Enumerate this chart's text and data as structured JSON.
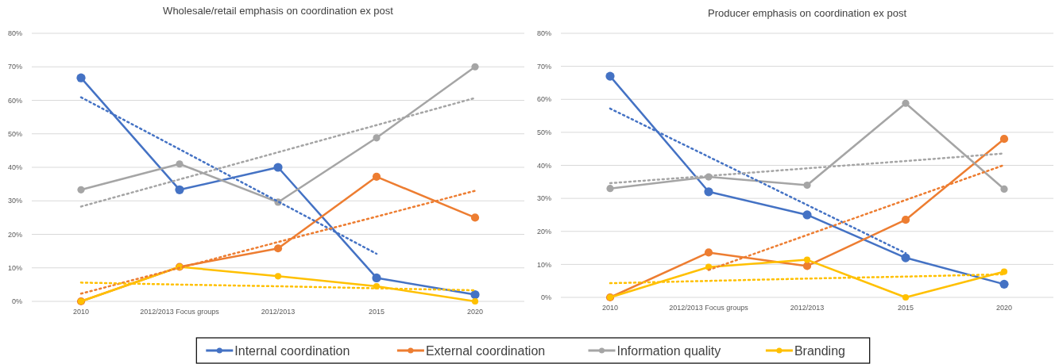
{
  "chart_data": [
    {
      "type": "line",
      "title": "Wholesale/retail emphasis on coordination ex post",
      "categories": [
        "2010",
        "2012/2013 Focus groups",
        "2012/2013",
        "2015",
        "2020"
      ],
      "ylim": [
        0,
        80
      ],
      "yticks": [
        {
          "value": 0,
          "label": "0%"
        },
        {
          "value": 10,
          "label": "10%"
        },
        {
          "value": 20,
          "label": "20%"
        },
        {
          "value": 30,
          "label": "30%"
        },
        {
          "value": 40,
          "label": "40%"
        },
        {
          "value": 50,
          "label": "50%"
        },
        {
          "value": 60,
          "label": "60%"
        },
        {
          "value": 70,
          "label": "70%"
        },
        {
          "value": 80,
          "label": "80%"
        }
      ],
      "grid": "y",
      "legend": "bottom",
      "marker": "circle",
      "line_style": "solid",
      "series": [
        {
          "name": "Internal coordination",
          "color": "#4472c4",
          "values": [
            66.7,
            33.3,
            40,
            7,
            2
          ]
        },
        {
          "name": "External coordination",
          "color": "#ed7d31",
          "values": [
            0,
            10.3,
            15.8,
            37.2,
            25
          ]
        },
        {
          "name": "Information quality",
          "color": "#a5a5a5",
          "values": [
            33.3,
            41,
            29.6,
            48.8,
            70
          ]
        },
        {
          "name": "Branding",
          "color": "#ffc000",
          "values": [
            0,
            10.3,
            7.5,
            4.5,
            0
          ]
        },
        {
          "type": "line",
          "color": "#4472c4",
          "line_style": "dotted",
          "marker": "none",
          "values": [
            60.9,
            45.4,
            29.8,
            14.2,
            null
          ]
        },
        {
          "type": "line",
          "color": "#ed7d31",
          "line_style": "dotted",
          "marker": "none",
          "values": [
            2.3,
            10,
            17.7,
            25.3,
            33
          ]
        },
        {
          "type": "line",
          "color": "#a5a5a5",
          "line_style": "dotted",
          "marker": "none",
          "values": [
            28.3,
            36.4,
            44.5,
            52.6,
            60.7
          ]
        },
        {
          "type": "line",
          "color": "#ffc000",
          "line_style": "dotted",
          "marker": "none",
          "values": [
            5.6,
            5,
            4.5,
            3.9,
            3.3
          ]
        }
      ]
    },
    {
      "type": "line",
      "title": "Producer emphasis on coordination ex post",
      "categories": [
        "2010",
        "2012/2013 Focus groups",
        "2012/2013",
        "2015",
        "2020"
      ],
      "ylim": [
        0,
        80
      ],
      "yticks": [
        {
          "value": 0,
          "label": "0%"
        },
        {
          "value": 10,
          "label": "10%"
        },
        {
          "value": 20,
          "label": "20%"
        },
        {
          "value": 30,
          "label": "30%"
        },
        {
          "value": 40,
          "label": "40%"
        },
        {
          "value": 50,
          "label": "50%"
        },
        {
          "value": 60,
          "label": "60%"
        },
        {
          "value": 70,
          "label": "70%"
        },
        {
          "value": 80,
          "label": "80%"
        }
      ],
      "grid": "y",
      "marker": "circle",
      "line_style": "solid",
      "series": [
        {
          "name": "Internal coordination",
          "color": "#4472c4",
          "values": [
            67,
            32,
            25,
            12,
            4
          ]
        },
        {
          "name": "External coordination",
          "color": "#ed7d31",
          "values": [
            0,
            13.6,
            9.5,
            23.5,
            48
          ]
        },
        {
          "name": "Information quality",
          "color": "#a5a5a5",
          "values": [
            33,
            36.5,
            34,
            58.8,
            32.8
          ]
        },
        {
          "name": "Branding",
          "color": "#ffc000",
          "values": [
            0,
            9.2,
            11.4,
            0,
            7.8
          ]
        },
        {
          "type": "line",
          "color": "#4472c4",
          "line_style": "dotted",
          "marker": "none",
          "values": [
            57.2,
            42.6,
            28,
            13.4,
            null
          ]
        },
        {
          "type": "line",
          "color": "#ed7d31",
          "line_style": "dotted",
          "marker": "none",
          "values": [
            null,
            8.3,
            18.9,
            29.5,
            40.1
          ]
        },
        {
          "type": "line",
          "color": "#a5a5a5",
          "line_style": "dotted",
          "marker": "none",
          "values": [
            34.6,
            36.8,
            39.1,
            41.3,
            43.6
          ]
        },
        {
          "type": "line",
          "color": "#ffc000",
          "line_style": "dotted",
          "marker": "none",
          "values": [
            4.3,
            5,
            5.7,
            6.3,
            7
          ]
        }
      ]
    }
  ]
}
